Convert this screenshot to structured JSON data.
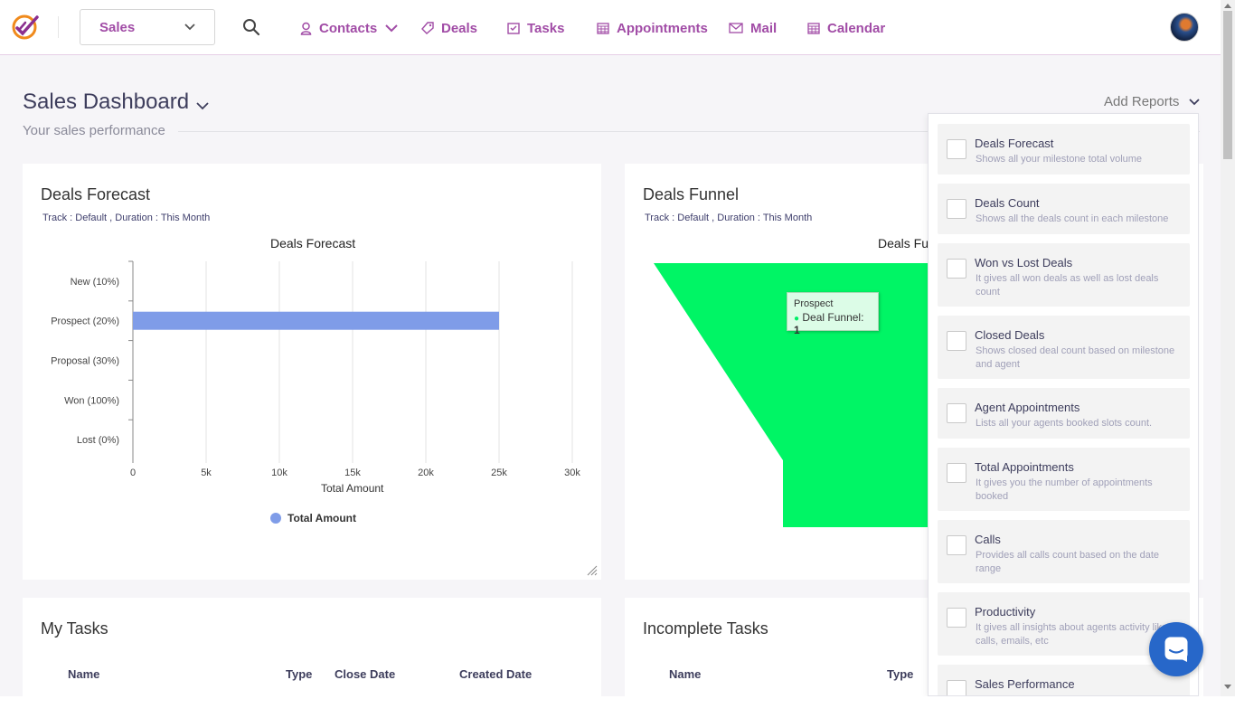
{
  "nav": {
    "module": "Sales",
    "items": [
      {
        "label": "Contacts",
        "icon": "user-icon"
      },
      {
        "label": "Deals",
        "icon": "tag-icon"
      },
      {
        "label": "Tasks",
        "icon": "task-icon"
      },
      {
        "label": "Appointments",
        "icon": "calendar-grid-icon"
      },
      {
        "label": "Mail",
        "icon": "envelope-icon"
      },
      {
        "label": "Calendar",
        "icon": "calendar-icon"
      }
    ],
    "accent": "#a14ca6"
  },
  "page": {
    "title": "Sales Dashboard",
    "subtitle": "Your sales performance",
    "add_reports": "Add Reports"
  },
  "deals_forecast": {
    "title": "Deals Forecast",
    "meta": "Track : Default ,  Duration : This Month",
    "chart_data": {
      "type": "bar",
      "orientation": "horizontal",
      "title": "Deals Forecast",
      "categories": [
        "New (10%)",
        "Prospect (20%)",
        "Proposal (30%)",
        "Won (100%)",
        "Lost (0%)"
      ],
      "series": [
        {
          "name": "Total Amount",
          "values": [
            0,
            25000,
            0,
            0,
            0
          ],
          "color": "#7f9ce8"
        }
      ],
      "xlabel": "Total Amount",
      "ylabel": "",
      "xlim": [
        0,
        30000
      ],
      "xticks": [
        "0",
        "5k",
        "10k",
        "15k",
        "20k",
        "25k",
        "30k"
      ],
      "grid": true,
      "legend": "bottom"
    }
  },
  "deals_funnel": {
    "title": "Deals Funnel",
    "meta": "Track : Default ,  Duration : This Month",
    "chart_title": "Deals Fu",
    "tooltip": {
      "stage": "Prospect",
      "label": "Deal Funnel: ",
      "value": "1"
    },
    "color": "#00f565"
  },
  "my_tasks": {
    "title": "My Tasks",
    "columns": [
      "Name",
      "Type",
      "Close Date",
      "Created Date"
    ]
  },
  "incomplete_tasks": {
    "title": "Incomplete Tasks",
    "columns": [
      "Name",
      "Type"
    ]
  },
  "reports": [
    {
      "name": "Deals Forecast",
      "desc": "Shows all your milestone total volume",
      "checked": false
    },
    {
      "name": "Deals Count",
      "desc": "Shows all the deals count in each milestone",
      "checked": false
    },
    {
      "name": "Won vs Lost Deals",
      "desc": "It gives all won deals as well as lost deals count",
      "checked": false
    },
    {
      "name": "Closed Deals",
      "desc": "Shows closed deal count based on milestone and agent",
      "checked": false
    },
    {
      "name": "Agent Appointments",
      "desc": "Lists all your agents booked slots count.",
      "checked": false
    },
    {
      "name": "Total Appointments",
      "desc": "It gives you the number of appointments booked",
      "checked": false
    },
    {
      "name": "Calls",
      "desc": "Provides all calls count based on the date range",
      "checked": false
    },
    {
      "name": "Productivity",
      "desc": "It gives all insights about agents activity like calls, emails, etc",
      "checked": false
    },
    {
      "name": "Sales Performance",
      "desc": "",
      "checked": false
    }
  ]
}
